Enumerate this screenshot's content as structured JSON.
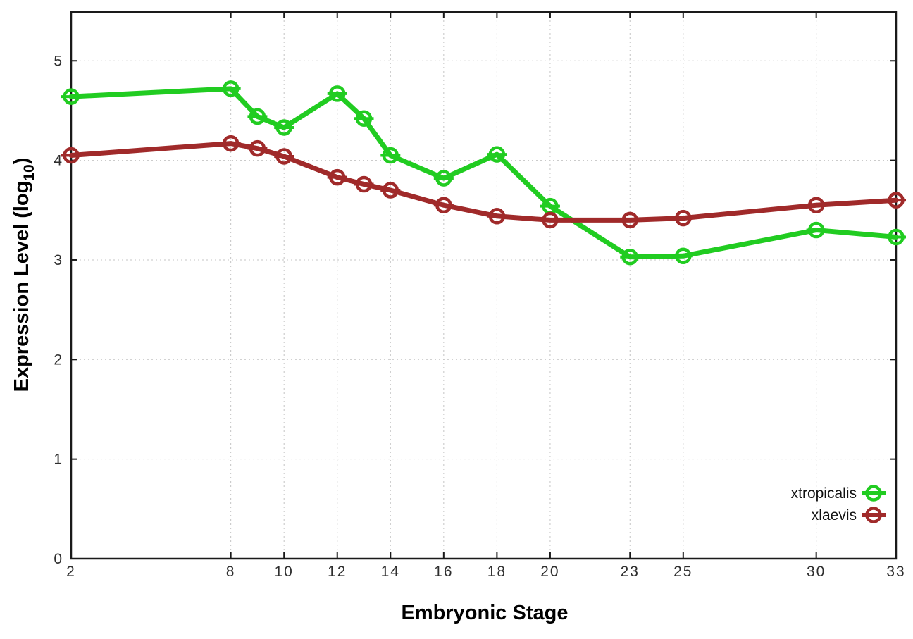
{
  "chart_data": {
    "type": "line",
    "title": "",
    "xlabel": "Embryonic Stage",
    "ylabel": "Expression Level (log10)",
    "ylabel_parts": {
      "main": "Expression Level (log",
      "sub": "10",
      "close": ")"
    },
    "x": [
      2,
      8,
      9,
      10,
      12,
      13,
      14,
      16,
      18,
      20,
      23,
      25,
      30,
      33
    ],
    "xticks": [
      2,
      8,
      10,
      12,
      14,
      16,
      18,
      20,
      23,
      25,
      30,
      33
    ],
    "yticks": [
      0,
      1,
      2,
      3,
      4,
      5
    ],
    "xlim": [
      2,
      33
    ],
    "ylim": [
      0,
      5.49
    ],
    "grid": true,
    "legend_position": "bottom-right",
    "marker": "open-circle-with-errorbar",
    "series": [
      {
        "name": "xtropicalis",
        "color": "#21cc21",
        "values": [
          4.64,
          4.72,
          4.44,
          4.33,
          4.67,
          4.42,
          4.05,
          3.82,
          4.06,
          3.54,
          3.03,
          3.04,
          3.3,
          3.23
        ]
      },
      {
        "name": "xlaevis",
        "color": "#a02a2a",
        "values": [
          4.05,
          4.17,
          4.12,
          4.04,
          3.83,
          3.76,
          3.7,
          3.55,
          3.44,
          3.4,
          3.4,
          3.42,
          3.55,
          3.6
        ]
      }
    ],
    "colors": {
      "background": "#ffffff",
      "axis": "#1a1a1a",
      "grid": "#c4c4c4",
      "tick_label": "#2e2e2e"
    }
  }
}
